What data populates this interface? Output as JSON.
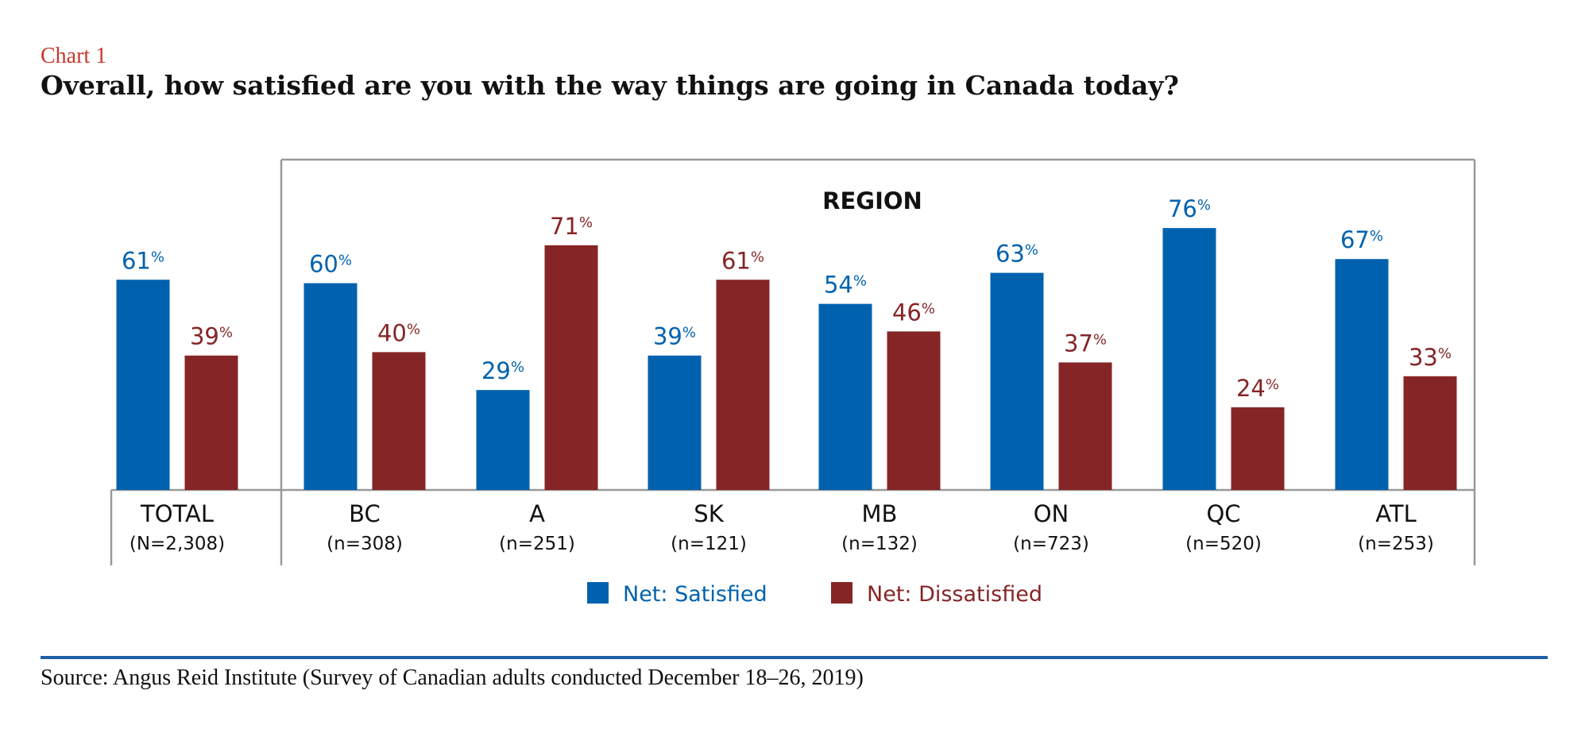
{
  "header": {
    "label": "Chart 1",
    "title": "Overall, how satisfied are you with the way things are going in Canada today?"
  },
  "chart_data": {
    "type": "bar",
    "group_label": "REGION",
    "value_suffix": "%",
    "categories": [
      "TOTAL",
      "BC",
      "A",
      "SK",
      "MB",
      "ON",
      "QC",
      "ATL"
    ],
    "sample_sizes": [
      "(N=2,308)",
      "(n=308)",
      "(n=251)",
      "(n=121)",
      "(n=132)",
      "(n=723)",
      "(n=520)",
      "(n=253)"
    ],
    "series": [
      {
        "name": "Net: Satisfied",
        "color": "#0062ae",
        "values": [
          61,
          60,
          29,
          39,
          54,
          63,
          76,
          67
        ]
      },
      {
        "name": "Net: Dissatisfied",
        "color": "#862526",
        "values": [
          39,
          40,
          71,
          61,
          46,
          37,
          24,
          33
        ]
      }
    ],
    "ylim": [
      0,
      100
    ],
    "grid": false,
    "legend": "bottom-center"
  },
  "footer": {
    "source": "Source: Angus Reid Institute (Survey of Canadian adults conducted December 18–26, 2019)"
  },
  "colors": {
    "accent_label": "#c8372d",
    "divider": "#1f5fa8",
    "frame": "#999999"
  }
}
